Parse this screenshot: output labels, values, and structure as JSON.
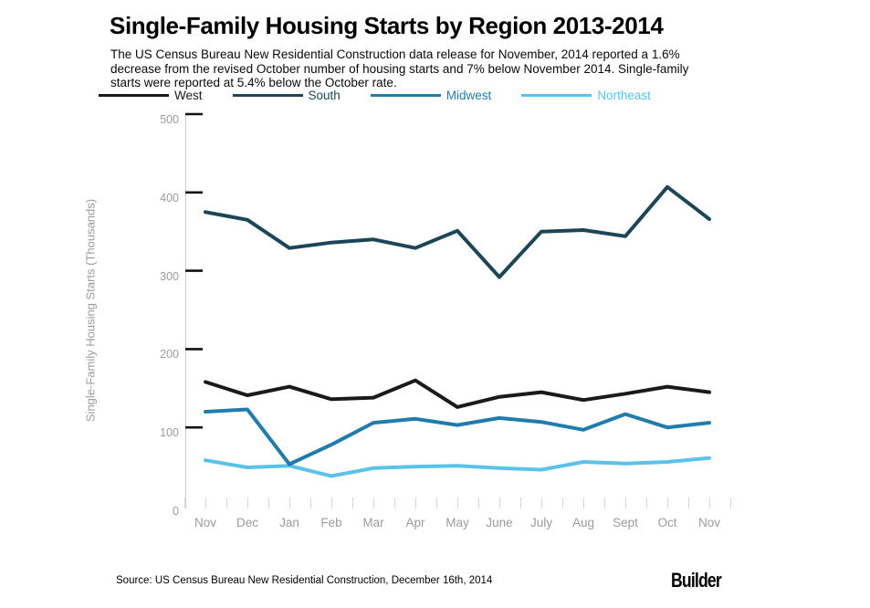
{
  "header": {
    "title": "Single-Family Housing Starts by Region 2013-2014",
    "subtitle": "The US Census Bureau New Residential Construction data release for November, 2014 reported a 1.6% decrease from the revised October number of housing starts and 7% below November 2014. Single-family starts were reported at 5.4% below the October rate."
  },
  "footer": {
    "source": "Source: US Census Bureau New Residential Construction, December 16th, 2014",
    "logo": "Builder"
  },
  "colors": {
    "west": "#1a1a1a",
    "south": "#1c4557",
    "midwest": "#1f7cad",
    "northeast": "#5bc3e9",
    "axis_text": "#9b9b9b",
    "axis_line": "#cfcfcf",
    "tick_black": "#111111",
    "tick_gray": "#d6d6d6"
  },
  "chart_data": {
    "type": "line",
    "title": "Single-Family Housing Starts by Region 2013-2014",
    "categories": [
      "Nov",
      "Dec",
      "Jan",
      "Feb",
      "Mar",
      "Apr",
      "May",
      "June",
      "July",
      "Aug",
      "Sept",
      "Oct",
      "Nov"
    ],
    "series": [
      {
        "name": "West",
        "color": "#1a1a1a",
        "values": [
          158,
          141,
          152,
          136,
          138,
          160,
          126,
          139,
          145,
          135,
          143,
          152,
          145
        ]
      },
      {
        "name": "South",
        "color": "#1c4557",
        "values": [
          375,
          365,
          329,
          336,
          340,
          329,
          351,
          292,
          350,
          352,
          344,
          407,
          366
        ]
      },
      {
        "name": "Midwest",
        "color": "#1f7cad",
        "values": [
          120,
          123,
          53,
          78,
          106,
          111,
          103,
          112,
          107,
          97,
          117,
          100,
          106
        ]
      },
      {
        "name": "Northeast",
        "color": "#5bc3e9",
        "values": [
          58,
          49,
          51,
          38,
          48,
          50,
          51,
          48,
          46,
          56,
          54,
          56,
          61
        ]
      }
    ],
    "xlabel": "",
    "ylabel": "Single-Family Housing Starts (Thousands)",
    "ylim": [
      0,
      500
    ],
    "yticks": [
      0,
      100,
      200,
      300,
      400,
      500
    ],
    "grid": false,
    "legend_position": "top"
  }
}
